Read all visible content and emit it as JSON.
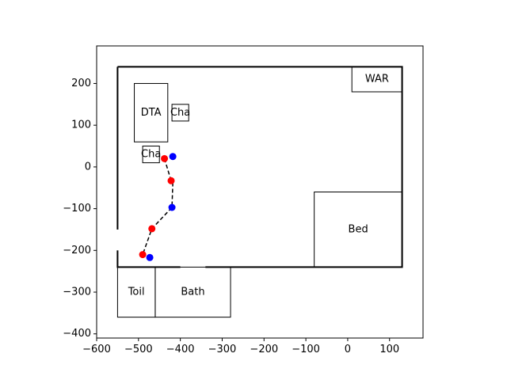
{
  "chart_data": {
    "type": "scatter",
    "title": "",
    "xlabel": "",
    "ylabel": "",
    "xlim": [
      -600,
      180
    ],
    "ylim": [
      -410,
      290
    ],
    "x_ticks": [
      -600,
      -500,
      -400,
      -300,
      -200,
      -100,
      0,
      100
    ],
    "y_ticks": [
      -400,
      -300,
      -200,
      -100,
      0,
      100,
      200
    ],
    "grid": false,
    "colors": {
      "walls": "#000000",
      "furniture_edge": "#000000",
      "series_red": "#ff0000",
      "series_blue": "#0000ff",
      "path": "#000000",
      "door_gap": "#ffffff"
    },
    "walls": {
      "outline": [
        [
          -550,
          240
        ],
        [
          130,
          240
        ],
        [
          130,
          -240
        ],
        [
          -550,
          -240
        ],
        [
          -550,
          240
        ]
      ],
      "door_gaps": [
        {
          "x1": -550,
          "y1": -150,
          "x2": -550,
          "y2": -200
        },
        {
          "x1": -400,
          "y1": -240,
          "x2": -340,
          "y2": -240
        }
      ]
    },
    "rooms": [
      {
        "label": "DTA",
        "x0": -510,
        "x1": -430,
        "y0": 60,
        "y1": 200
      },
      {
        "label": "Cha",
        "x0": -420,
        "x1": -380,
        "y0": 110,
        "y1": 150
      },
      {
        "label": "Cha",
        "x0": -490,
        "x1": -450,
        "y0": 10,
        "y1": 50
      },
      {
        "label": "WAR",
        "x0": 10,
        "x1": 130,
        "y0": 180,
        "y1": 240
      },
      {
        "label": "Bed",
        "x0": -80,
        "x1": 130,
        "y0": -240,
        "y1": -60
      },
      {
        "label": "Toil",
        "x0": -550,
        "x1": -460,
        "y0": -360,
        "y1": -240
      },
      {
        "label": "Bath",
        "x0": -460,
        "x1": -280,
        "y0": -360,
        "y1": -240
      }
    ],
    "series": [
      {
        "color": "red",
        "points": [
          [
            -438,
            20
          ],
          [
            -422,
            -33
          ],
          [
            -468,
            -148
          ],
          [
            -490,
            -210
          ]
        ]
      },
      {
        "color": "blue",
        "points": [
          [
            -418,
            25
          ],
          [
            -420,
            -97
          ],
          [
            -473,
            -217
          ]
        ]
      }
    ],
    "path": [
      [
        -438,
        20
      ],
      [
        -422,
        -33
      ],
      [
        -418,
        -40
      ],
      [
        -420,
        -97
      ],
      [
        -468,
        -148
      ],
      [
        -490,
        -210
      ]
    ]
  }
}
